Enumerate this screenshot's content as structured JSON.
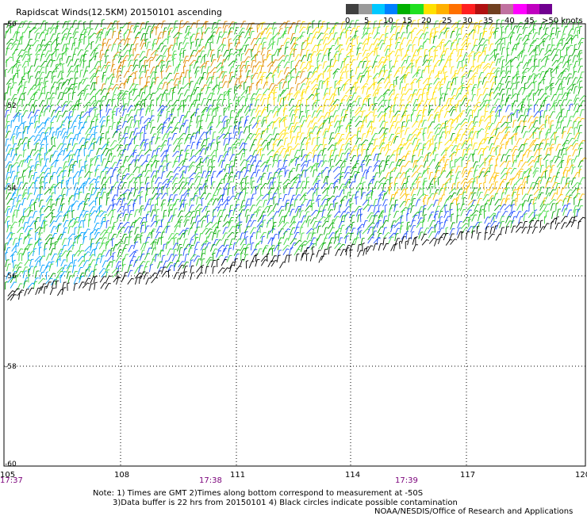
{
  "title": "Rapidscat Winds(12.5KM) 20150101 ascending",
  "colorbar": {
    "colors": [
      "#404040",
      "#9a9a9a",
      "#00c8ff",
      "#0080ff",
      "#00b000",
      "#20e020",
      "#ffe000",
      "#ffb000",
      "#ff7000",
      "#ff2020",
      "#b01010",
      "#704020",
      "#c070a0",
      "#ff00ff",
      "#c000c0",
      "#700090"
    ],
    "labels": [
      "0",
      "5",
      "10",
      "15",
      "20",
      "25",
      "30",
      "35",
      "40",
      "45"
    ],
    "max_label": ">50 knots"
  },
  "lat_labels": [
    "-50",
    "-52",
    "-54",
    "-56",
    "-58",
    "-60"
  ],
  "lon_labels": [
    "105",
    "108",
    "111",
    "114",
    "117",
    "120"
  ],
  "time_labels": [
    "17:37",
    "17:38",
    "17:39"
  ],
  "notes": {
    "line1": "Note: 1) Times are GMT 2)Times along bottom correspond to measurement at -50S",
    "line2": "3)Data buffer is 22 hrs from 20150101 4) Black circles indicate possible contamination",
    "line3": "NOAA/NESDIS/Office of Research and Applications"
  }
}
